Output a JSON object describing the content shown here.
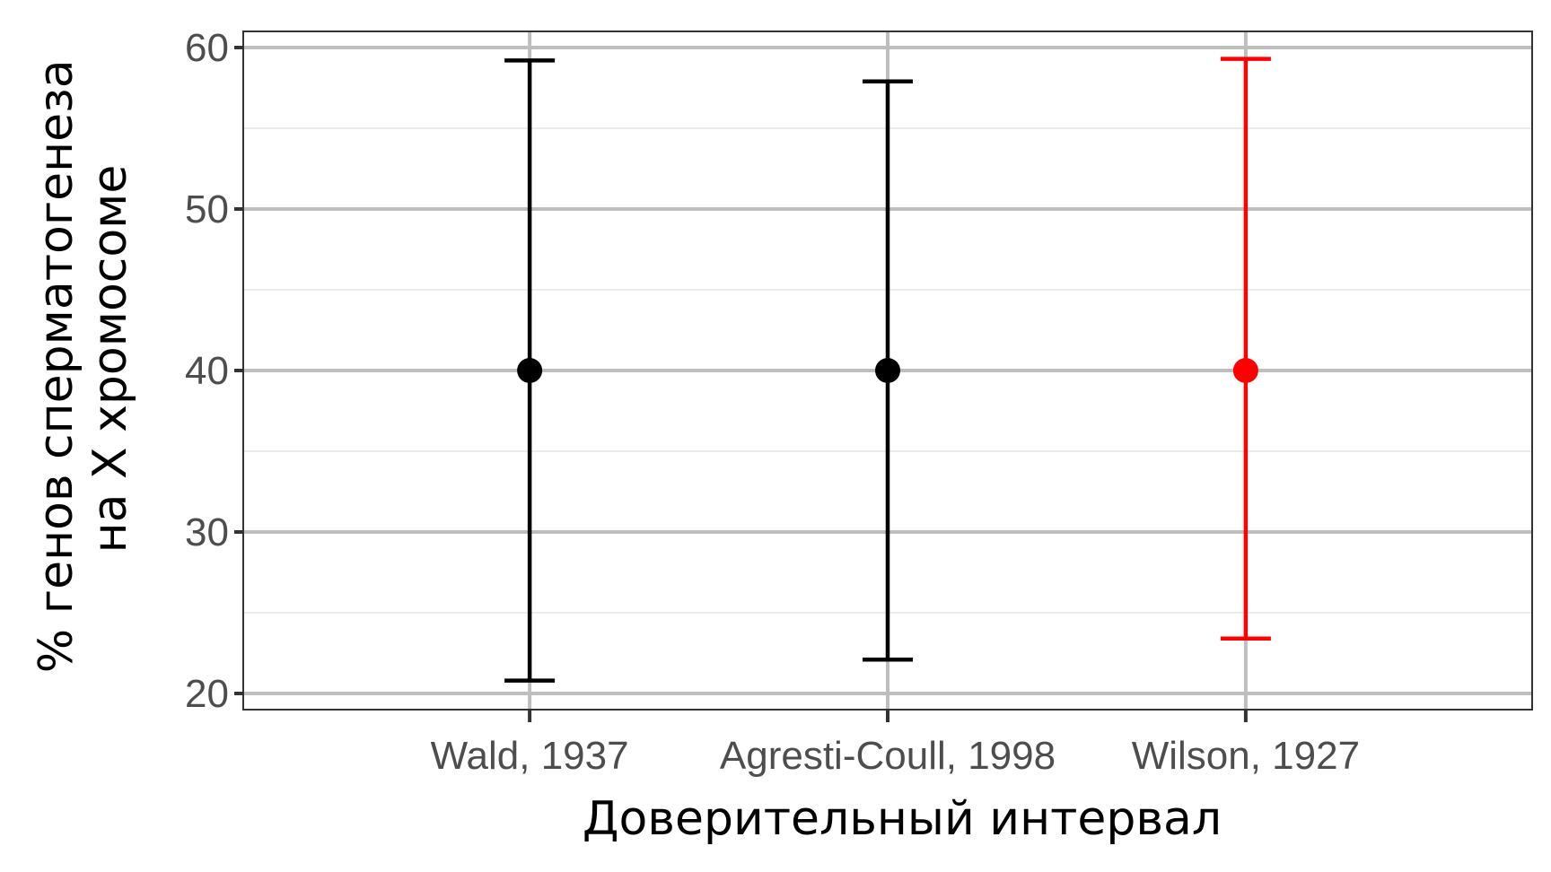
{
  "chart_data": {
    "type": "errorbar",
    "xlabel": "Доверительный интервал",
    "ylabel_lines": [
      "% генов сперматогенеза",
      "на X хромосоме"
    ],
    "categories": [
      "Wald, 1937",
      "Agresti-Coull, 1998",
      "Wilson, 1927"
    ],
    "points": [
      {
        "category": "Wald, 1937",
        "estimate": 40,
        "lower": 20.8,
        "upper": 59.2,
        "color": "#000000"
      },
      {
        "category": "Agresti-Coull, 1998",
        "estimate": 40,
        "lower": 22.1,
        "upper": 57.9,
        "color": "#000000"
      },
      {
        "category": "Wilson, 1927",
        "estimate": 40,
        "lower": 23.4,
        "upper": 59.3,
        "color": "#ff0000"
      }
    ],
    "ylim": [
      19,
      61
    ],
    "yticks": [
      20,
      30,
      40,
      50,
      60
    ],
    "grid": true,
    "legend": "none"
  },
  "colors": {
    "panel_border": "#333333",
    "grid_major": "#bebebe",
    "grid_minor": "#ebebeb",
    "tick_text": "#4d4d4d"
  }
}
